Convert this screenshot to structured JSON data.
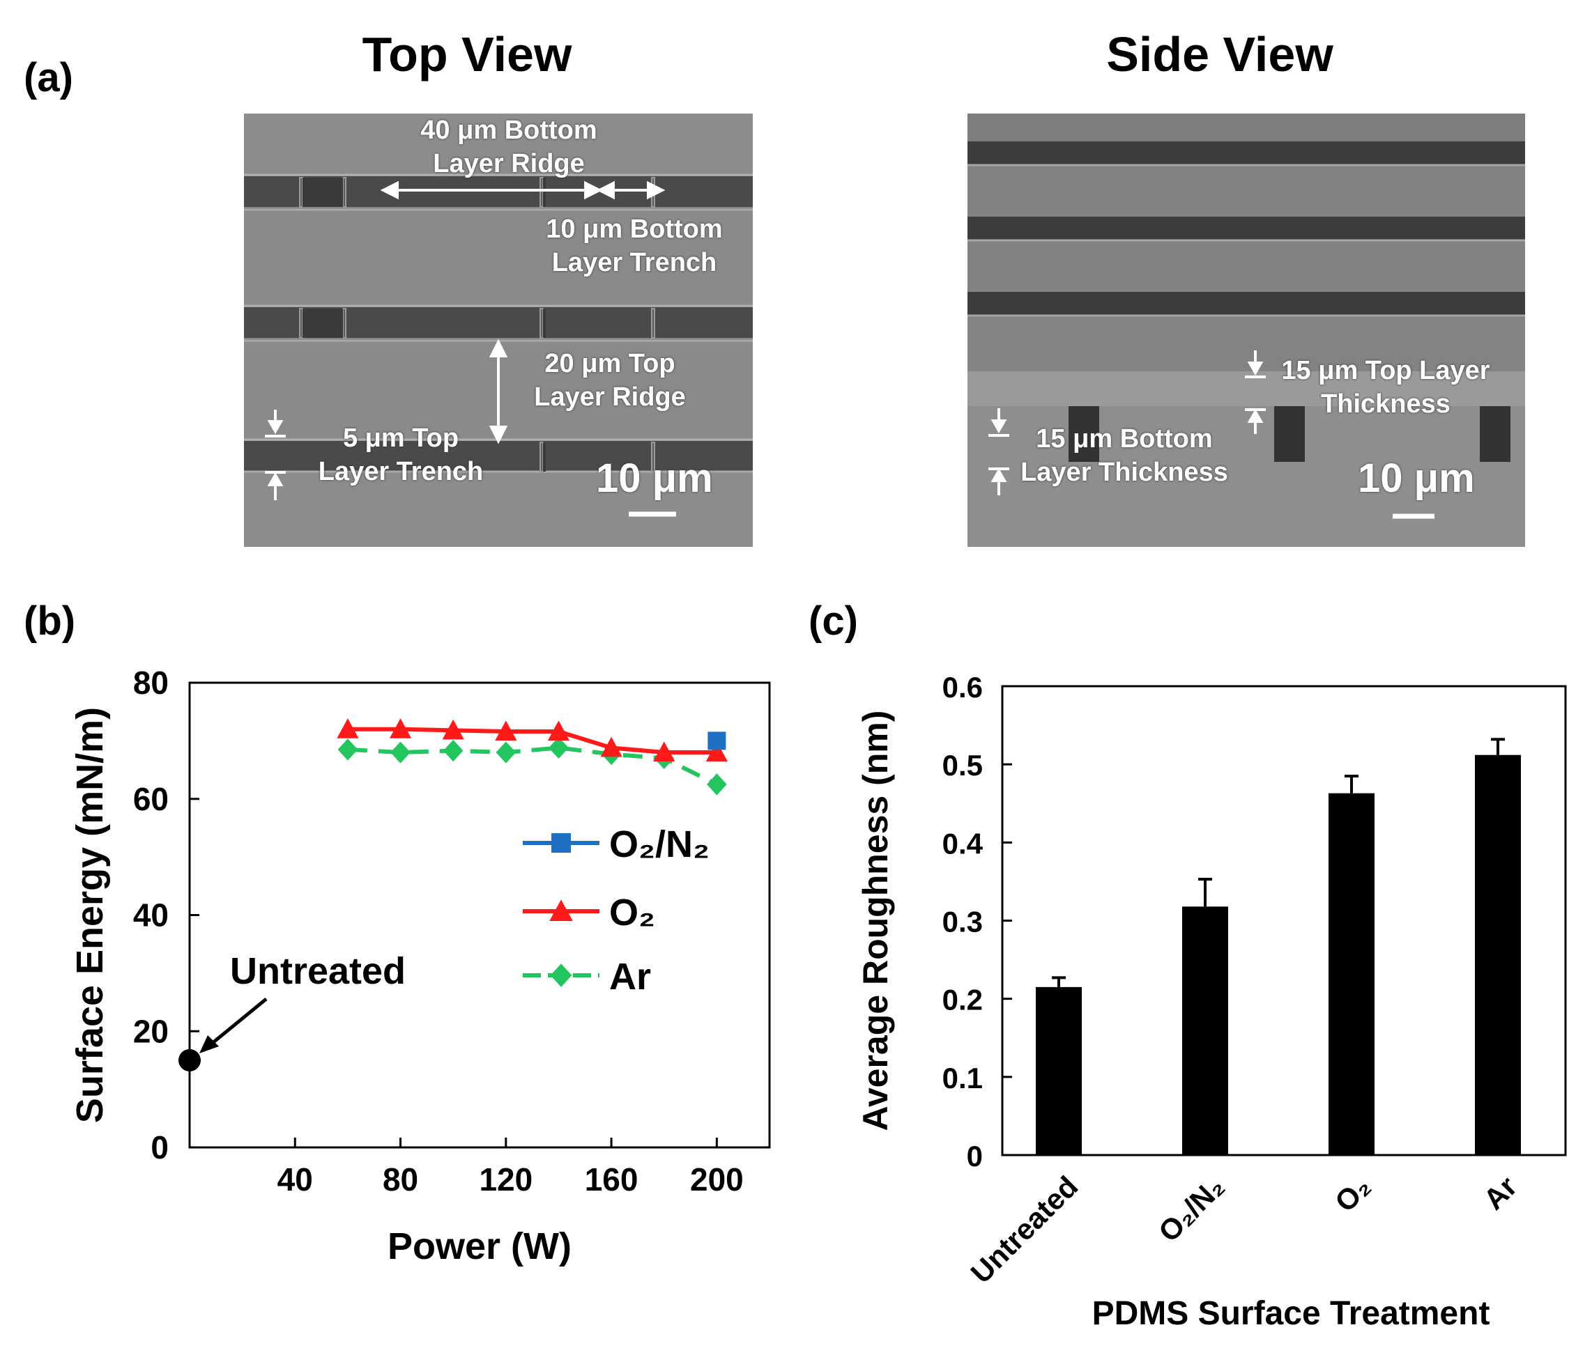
{
  "panel_a": {
    "label": "(a)",
    "top_view": {
      "title": "Top View",
      "annotations": {
        "bottom_ridge": "40 μm Bottom\nLayer Ridge",
        "bottom_trench": "10 μm Bottom\nLayer Trench",
        "top_ridge": "20 μm Top\nLayer Ridge",
        "top_trench": "5 μm Top\nLayer Trench"
      },
      "scale_bar": "10 μm"
    },
    "side_view": {
      "title": "Side View",
      "annotations": {
        "top_thickness": "15 μm Top Layer\nThickness",
        "bottom_thickness": "15 μm Bottom\nLayer Thickness"
      },
      "scale_bar": "10 μm"
    }
  },
  "panel_b": {
    "label": "(b)"
  },
  "panel_c": {
    "label": "(c)"
  },
  "chart_data": [
    {
      "type": "line",
      "title": "",
      "xlabel": "Power (W)",
      "ylabel": "Surface Energy (mN/m)",
      "xlim": [
        0,
        220
      ],
      "ylim": [
        0,
        80
      ],
      "xticks": [
        40,
        80,
        120,
        160,
        200
      ],
      "yticks": [
        0,
        20,
        40,
        60,
        80
      ],
      "series": [
        {
          "name": "O2/N2",
          "legend_label": "O₂/N₂",
          "color": "#1f6fc5",
          "marker": "square",
          "x": [
            200
          ],
          "y": [
            70
          ]
        },
        {
          "name": "O2",
          "legend_label": "O₂",
          "color": "#ff1a1a",
          "marker": "triangle",
          "x": [
            60,
            80,
            100,
            120,
            140,
            160,
            180,
            200
          ],
          "y": [
            72,
            72,
            71.8,
            71.6,
            71.6,
            68.8,
            68,
            68
          ]
        },
        {
          "name": "Ar",
          "legend_label": "Ar",
          "color": "#22c55e",
          "marker": "diamond",
          "x": [
            60,
            80,
            100,
            120,
            140,
            160,
            180,
            200
          ],
          "y": [
            68.5,
            68,
            68.3,
            68,
            68.8,
            67.7,
            67,
            62.5
          ]
        }
      ],
      "untreated": {
        "label": "Untreated",
        "x": 0,
        "y": 15
      }
    },
    {
      "type": "bar",
      "title": "",
      "xlabel": "PDMS Surface Treatment",
      "ylabel": "Average Roughness (nm)",
      "ylim": [
        0,
        0.6
      ],
      "yticks": [
        "0",
        "0.1",
        "0.2",
        "0.3",
        "0.4",
        "0.5",
        "0.6"
      ],
      "categories": [
        "Untreated",
        "O₂/N₂",
        "O₂",
        "Ar"
      ],
      "values": [
        0.215,
        0.318,
        0.463,
        0.512
      ],
      "errors": [
        0.012,
        0.035,
        0.022,
        0.02
      ]
    }
  ]
}
